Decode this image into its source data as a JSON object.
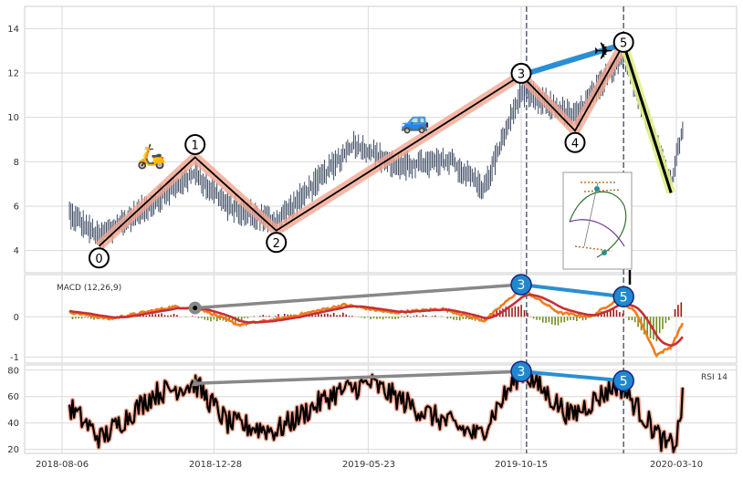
{
  "chart_data": {
    "type": "line",
    "panels": [
      {
        "id": "price",
        "ylim": [
          3,
          15
        ],
        "yticks": [
          4,
          6,
          8,
          10,
          12,
          14
        ],
        "wave_points": [
          {
            "label": "0",
            "date": "2018-09-10",
            "value": 4.2
          },
          {
            "label": "1",
            "date": "2018-12-10",
            "value": 8.2
          },
          {
            "label": "2",
            "date": "2019-02-25",
            "value": 4.9
          },
          {
            "label": "3",
            "date": "2019-10-15",
            "value": 11.9
          },
          {
            "label": "4",
            "date": "2019-12-05",
            "value": 9.4
          },
          {
            "label": "5",
            "date": "2020-01-20",
            "value": 13.3
          }
        ],
        "correction_line": [
          {
            "date": "2020-01-20",
            "value": 13.3
          },
          {
            "date": "2020-03-05",
            "value": 6.6
          }
        ],
        "projection_line": [
          {
            "date": "2019-10-15",
            "value": 11.9
          },
          {
            "date": "2020-01-20",
            "value": 13.3
          }
        ],
        "vertical_markers": [
          "2019-10-20",
          "2020-01-20"
        ],
        "emoji": [
          "scooter",
          "car",
          "airplane"
        ]
      },
      {
        "id": "macd",
        "label": "MACD (12,26,9)",
        "ylim": [
          -1.15,
          1.05
        ],
        "yticks": [
          -1,
          0
        ],
        "divergence": [
          {
            "date": "2018-12-10",
            "value": 0.22
          },
          {
            "date": "2019-10-15",
            "value": 0.8
          },
          {
            "date": "2020-01-20",
            "value": 0.5
          }
        ],
        "marker_labels": [
          "3",
          "5"
        ]
      },
      {
        "id": "rsi",
        "label": "RSI 14",
        "ylim": [
          17,
          84
        ],
        "yticks": [
          20,
          40,
          60,
          80
        ],
        "divergence": [
          {
            "date": "2018-12-10",
            "value": 70
          },
          {
            "date": "2019-10-15",
            "value": 79
          },
          {
            "date": "2020-01-20",
            "value": 72
          }
        ],
        "marker_labels": [
          "3",
          "5"
        ]
      }
    ],
    "x_tick_labels": [
      "2018-08-06",
      "2018-12-28",
      "2019-05-23",
      "2019-10-15",
      "2020-03-10"
    ],
    "colors": {
      "price": "#2b3a55",
      "wave_line": "#000000",
      "wave_highlight": "#f2a58f",
      "projection": "#2b8fd3",
      "correction_highlight": "#e2f08a",
      "macd_line": "#f07c1f",
      "signal_line": "#c73035",
      "hist_pos": "#9b1b1b",
      "hist_neg": "#6f8f1d",
      "divergence": "#888888",
      "marker_fill": "#1f88cf",
      "vline": "#5b6b7b"
    }
  }
}
